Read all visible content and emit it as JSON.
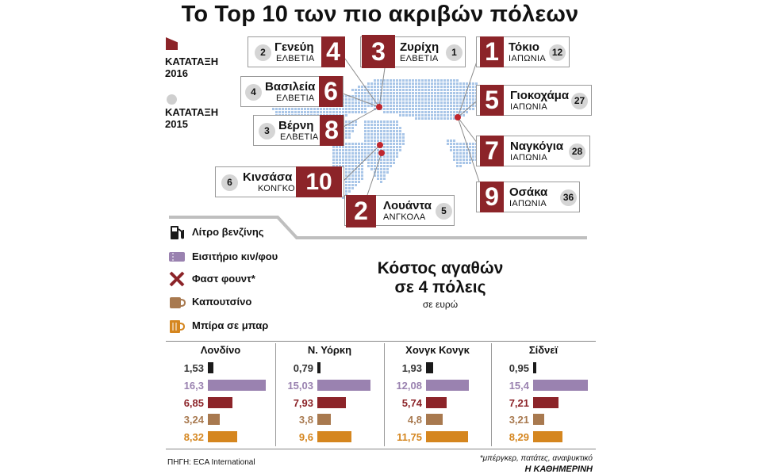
{
  "title": "Το Top 10 των πιο ακριβών πόλεων",
  "legend": {
    "rank_2016": "ΚΑΤΑΤΑΞΗ 2016",
    "rank_2015": "ΚΑΤΑΤΑΞΗ 2015",
    "rank_2016_color": "#8c2429",
    "rank_2015_color": "#cfcfcf"
  },
  "cities": [
    {
      "rank": "4",
      "prev": "2",
      "name": "Γενεύη",
      "country": "ΕΛΒΕΤΙΑ"
    },
    {
      "rank": "3",
      "prev": "1",
      "name": "Ζυρίχη",
      "country": "ΕΛΒΕΤΙΑ"
    },
    {
      "rank": "1",
      "prev": "12",
      "name": "Τόκιο",
      "country": "ΙΑΠΩΝΙΑ"
    },
    {
      "rank": "6",
      "prev": "4",
      "name": "Βασιλεία",
      "country": "ΕΛΒΕΤΙΑ"
    },
    {
      "rank": "5",
      "prev": "27",
      "name": "Γιοκοχάμα",
      "country": "ΙΑΠΩΝΙΑ"
    },
    {
      "rank": "8",
      "prev": "3",
      "name": "Βέρνη",
      "country": "ΕΛΒΕΤΙΑ"
    },
    {
      "rank": "7",
      "prev": "28",
      "name": "Ναγκόγια",
      "country": "ΙΑΠΩΝΙΑ"
    },
    {
      "rank": "10",
      "prev": "6",
      "name": "Κινσάσα",
      "country": "ΚΟΝΓΚΟ"
    },
    {
      "rank": "9",
      "prev": "36",
      "name": "Οσάκα",
      "country": "ΙΑΠΩΝΙΑ"
    },
    {
      "rank": "2",
      "prev": "5",
      "name": "Λουάντα",
      "country": "ΑΝΓΚΟΛΑ"
    }
  ],
  "goods_legend": [
    {
      "label": "Λίτρο βενζίνης",
      "icon": "fuel-pump-icon",
      "color": "#1a1a1a"
    },
    {
      "label": "Εισιτήριο κιν/φου",
      "icon": "ticket-icon",
      "color": "#9a82b0"
    },
    {
      "label": "Φαστ φουντ*",
      "icon": "fork-knife-icon",
      "color": "#8c2429"
    },
    {
      "label": "Καπουτσίνο",
      "icon": "cup-icon",
      "color": "#a8794f"
    },
    {
      "label": "Μπίρα σε μπαρ",
      "icon": "beer-mug-icon",
      "color": "#d5861f"
    }
  ],
  "costs": {
    "title_line1": "Κόστος αγαθών",
    "title_line2": "σε 4 πόλεις",
    "subtitle": "σε ευρώ"
  },
  "chart_data": {
    "type": "bar",
    "title": "Κόστος αγαθών σε 4 πόλεις",
    "unit": "σε ευρώ",
    "categories": [
      "Λίτρο βενζίνης",
      "Εισιτήριο κιν/φου",
      "Φαστ φουντ*",
      "Καπουτσίνο",
      "Μπίρα σε μπαρ"
    ],
    "series": [
      {
        "name": "Λονδίνο",
        "values": [
          1.53,
          16.3,
          6.85,
          3.24,
          8.32
        ],
        "labels": [
          "1,53",
          "16,3",
          "6,85",
          "3,24",
          "8,32"
        ]
      },
      {
        "name": "Ν. Υόρκη",
        "values": [
          0.79,
          15.03,
          7.93,
          3.8,
          9.6
        ],
        "labels": [
          "0,79",
          "15,03",
          "7,93",
          "3,8",
          "9,6"
        ]
      },
      {
        "name": "Χονγκ Κονγκ",
        "values": [
          1.93,
          12.08,
          5.74,
          4.8,
          11.75
        ],
        "labels": [
          "1,93",
          "12,08",
          "5,74",
          "4,8",
          "11,75"
        ]
      },
      {
        "name": "Σίδνεϊ",
        "values": [
          0.95,
          15.4,
          7.21,
          3.21,
          8.29
        ],
        "labels": [
          "0,95",
          "15,4",
          "7,21",
          "3,21",
          "8,29"
        ]
      }
    ],
    "colors": [
      "#1a1a1a",
      "#9a82b0",
      "#8c2429",
      "#a8794f",
      "#d5861f"
    ],
    "ylim": [
      0,
      16.3
    ]
  },
  "footer": {
    "source": "ΠΗΓΗ: ECA International",
    "note": "*μπέργκερ, πατάτες, αναψυκτικό",
    "brand": "Η ΚΑΘΗΜΕΡΙΝΗ"
  }
}
